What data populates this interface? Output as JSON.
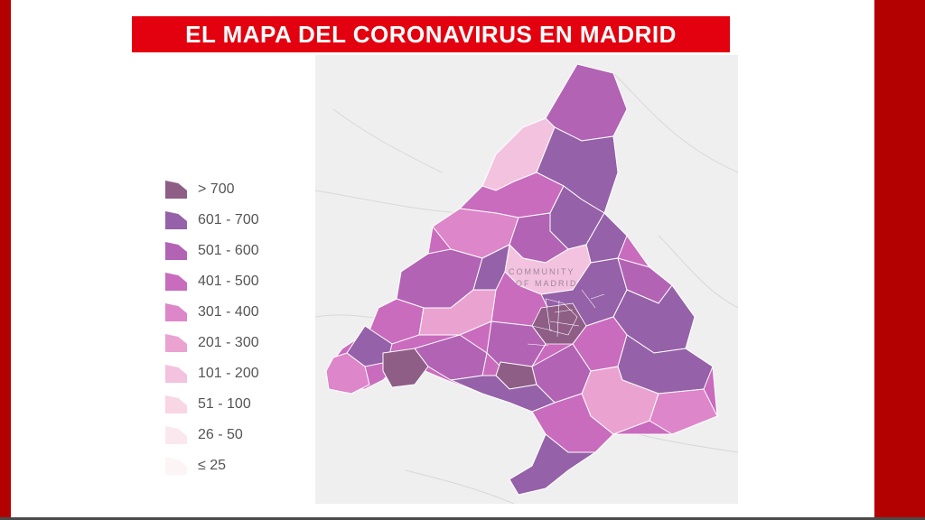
{
  "header": {
    "title": "EL MAPA DEL CORONAVIRUS EN MADRID"
  },
  "map": {
    "watermark_line1": "COMMUNITY",
    "watermark_line2": "OF MADRID"
  },
  "legend": {
    "items": [
      {
        "label": "> 700",
        "color": "#8e5e86"
      },
      {
        "label": "601 - 700",
        "color": "#9561a8"
      },
      {
        "label": "501 - 600",
        "color": "#b263b4"
      },
      {
        "label": "401 - 500",
        "color": "#c96cbd"
      },
      {
        "label": "301 - 400",
        "color": "#dd86c9"
      },
      {
        "label": "201 - 300",
        "color": "#eaa3d1"
      },
      {
        "label": "101 - 200",
        "color": "#f3c2de"
      },
      {
        "label": "51 - 100",
        "color": "#f8d6e3"
      },
      {
        "label": "26 - 50",
        "color": "#fbe8ee"
      },
      {
        "label": "≤ 25",
        "color": "#fdf4f6"
      }
    ]
  },
  "colors": {
    "frame": "#b30000",
    "title_bg": "#e3000f",
    "map_bg": "#efefef"
  }
}
